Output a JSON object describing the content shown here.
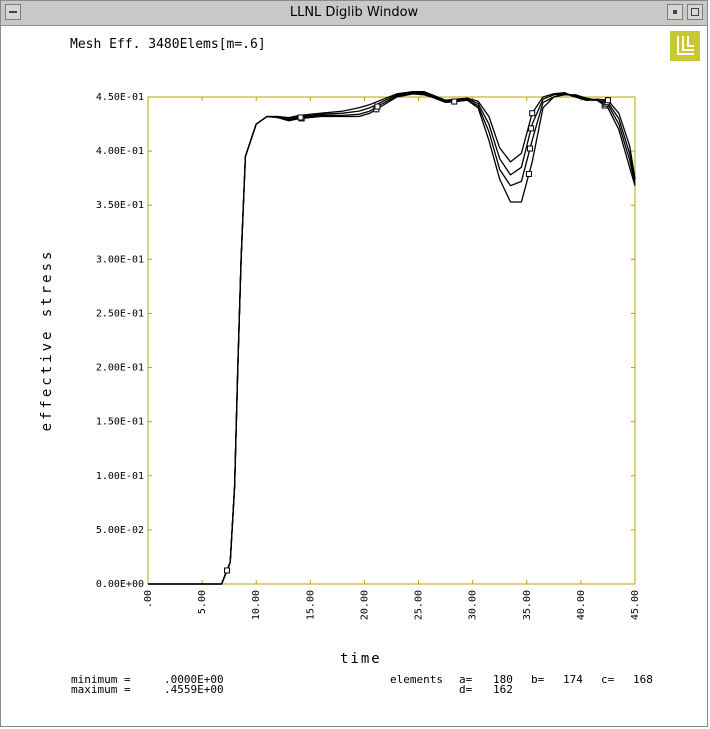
{
  "window": {
    "title": "LLNL Diglib Window",
    "logo": "llnl-logo",
    "logo_color": "#c8c832"
  },
  "chart_data": {
    "type": "line",
    "title": "Mesh Eff. 3480Elems[m=.6]",
    "xlabel": "time",
    "ylabel": "effective stress",
    "xlim": [
      0,
      45
    ],
    "ylim": [
      0,
      0.45
    ],
    "x_ticks": [
      0,
      5,
      10,
      15,
      20,
      25,
      30,
      35,
      40,
      45
    ],
    "x_tick_labels": [
      ".00",
      "5.00",
      "10.00",
      "15.00",
      "20.00",
      "25.00",
      "30.00",
      "35.00",
      "40.00",
      "45.00"
    ],
    "y_ticks": [
      0,
      0.05,
      0.1,
      0.15,
      0.2,
      0.25,
      0.3,
      0.35,
      0.4,
      0.45
    ],
    "y_tick_labels": [
      "0.00E+00",
      "5.00E-02",
      "1.00E-01",
      "1.50E-01",
      "2.00E-01",
      "2.50E-01",
      "3.00E-01",
      "3.50E-01",
      "4.00E-01",
      "4.50E-01"
    ],
    "frame_color": "#b4a800",
    "series": [
      {
        "marker": "a",
        "x": [
          0,
          6.8,
          7.6,
          8.0,
          8.3,
          8.6,
          9.0,
          10.0,
          11.0,
          12.0,
          13.0,
          14.0,
          16.0,
          18.0,
          19.5,
          20.5,
          21.5,
          23.0,
          24.5,
          25.5,
          26.5,
          27.5,
          28.5,
          29.5,
          30.5,
          31.5,
          32.5,
          33.5,
          34.5,
          35.5,
          36.5,
          37.5,
          38.5,
          39.5,
          40.5,
          41.5,
          42.5,
          43.5,
          44.5,
          45.0
        ],
        "y": [
          0,
          0,
          0.02,
          0.09,
          0.2,
          0.3,
          0.395,
          0.425,
          0.432,
          0.431,
          0.428,
          0.43,
          0.432,
          0.432,
          0.432,
          0.435,
          0.441,
          0.45,
          0.453,
          0.452,
          0.449,
          0.445,
          0.446,
          0.447,
          0.44,
          0.41,
          0.374,
          0.353,
          0.353,
          0.39,
          0.44,
          0.45,
          0.452,
          0.452,
          0.449,
          0.447,
          0.44,
          0.42,
          0.385,
          0.368
        ]
      },
      {
        "marker": "b",
        "x": [
          0,
          6.8,
          7.6,
          8.0,
          8.3,
          8.6,
          9.0,
          10.0,
          11.0,
          12.0,
          13.0,
          14.0,
          16.0,
          18.0,
          19.5,
          20.5,
          21.5,
          23.0,
          24.5,
          25.5,
          26.5,
          27.5,
          28.5,
          29.5,
          30.5,
          31.5,
          32.5,
          33.5,
          34.5,
          35.5,
          36.5,
          37.5,
          38.5,
          39.5,
          40.5,
          41.5,
          42.5,
          43.5,
          44.5,
          45.0
        ],
        "y": [
          0,
          0,
          0.02,
          0.09,
          0.2,
          0.3,
          0.395,
          0.425,
          0.432,
          0.431,
          0.429,
          0.431,
          0.433,
          0.433,
          0.434,
          0.437,
          0.443,
          0.451,
          0.454,
          0.453,
          0.449,
          0.445,
          0.446,
          0.447,
          0.442,
          0.418,
          0.383,
          0.368,
          0.372,
          0.41,
          0.445,
          0.45,
          0.453,
          0.451,
          0.448,
          0.447,
          0.443,
          0.425,
          0.392,
          0.37
        ]
      },
      {
        "marker": "c",
        "x": [
          0,
          6.8,
          7.6,
          8.0,
          8.3,
          8.6,
          9.0,
          10.0,
          11.0,
          12.0,
          13.0,
          14.0,
          16.0,
          18.0,
          19.5,
          20.5,
          21.5,
          23.0,
          24.5,
          25.5,
          26.5,
          27.5,
          28.5,
          29.5,
          30.5,
          31.5,
          32.5,
          33.5,
          34.5,
          35.5,
          36.5,
          37.5,
          38.5,
          39.5,
          40.5,
          41.5,
          42.5,
          43.5,
          44.5,
          45.0
        ],
        "y": [
          0,
          0,
          0.02,
          0.09,
          0.2,
          0.3,
          0.395,
          0.425,
          0.432,
          0.432,
          0.43,
          0.432,
          0.434,
          0.435,
          0.437,
          0.44,
          0.445,
          0.452,
          0.455,
          0.454,
          0.45,
          0.446,
          0.447,
          0.448,
          0.444,
          0.425,
          0.393,
          0.378,
          0.385,
          0.425,
          0.448,
          0.452,
          0.453,
          0.45,
          0.447,
          0.447,
          0.445,
          0.43,
          0.398,
          0.373
        ]
      },
      {
        "marker": "d",
        "x": [
          0,
          6.8,
          7.6,
          8.0,
          8.3,
          8.6,
          9.0,
          10.0,
          11.0,
          12.0,
          13.0,
          14.0,
          16.0,
          18.0,
          19.5,
          20.5,
          21.5,
          23.0,
          24.5,
          25.5,
          26.5,
          27.5,
          28.5,
          29.5,
          30.5,
          31.5,
          32.5,
          33.5,
          34.5,
          35.5,
          36.5,
          37.5,
          38.5,
          39.5,
          40.5,
          41.5,
          42.5,
          43.5,
          44.5,
          45.0
        ],
        "y": [
          0,
          0,
          0.02,
          0.09,
          0.2,
          0.3,
          0.395,
          0.425,
          0.432,
          0.432,
          0.431,
          0.433,
          0.435,
          0.437,
          0.44,
          0.443,
          0.447,
          0.453,
          0.455,
          0.455,
          0.451,
          0.447,
          0.448,
          0.449,
          0.446,
          0.432,
          0.403,
          0.39,
          0.398,
          0.435,
          0.45,
          0.453,
          0.454,
          0.45,
          0.447,
          0.448,
          0.447,
          0.435,
          0.405,
          0.375
        ]
      }
    ],
    "marker_points": [
      {
        "series": "a",
        "x": [
          7.3,
          14.2,
          21.1,
          28.3,
          35.2,
          42.2
        ]
      },
      {
        "series": "b",
        "x": [
          14.1,
          21.2,
          35.3,
          42.3
        ]
      },
      {
        "series": "c",
        "x": [
          35.4,
          42.4
        ]
      },
      {
        "series": "d",
        "x": [
          35.5,
          42.5
        ]
      }
    ]
  },
  "stats": {
    "minimum_label": "minimum =",
    "minimum_value": ".0000E+00",
    "maximum_label": "maximum =",
    "maximum_value": ".4559E+00",
    "elements_label": "elements",
    "a_label": "a=",
    "a_value": "180",
    "b_label": "b=",
    "b_value": "174",
    "c_label": "c=",
    "c_value": "168",
    "d_label": "d=",
    "d_value": "162"
  }
}
